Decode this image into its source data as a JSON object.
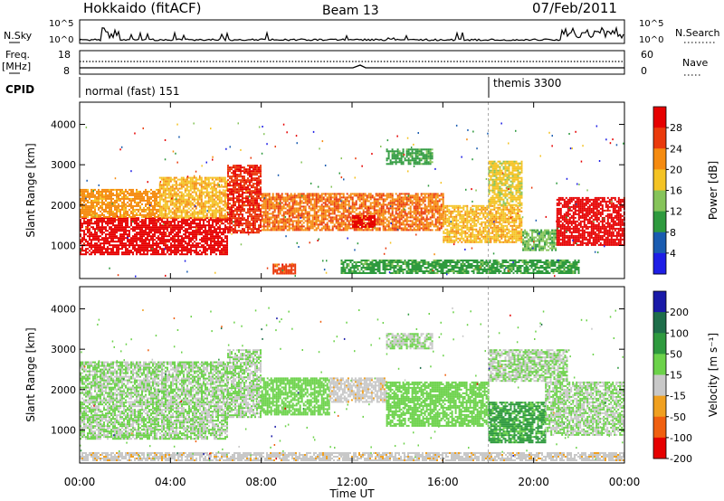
{
  "header": {
    "station": "Hokkaido (fitACF)",
    "beam": "Beam 13",
    "date": "07/Feb/2011"
  },
  "strips": {
    "nsky_label": "N.Sky",
    "nsearch_label": "N.Search",
    "freq_label_line1": "Freq.",
    "freq_label_line2": "[MHz]",
    "nave_label": "Nave",
    "cpid_label": "CPID",
    "nsky_ticks": [
      "10^5",
      "10^0"
    ],
    "nsearch_ticks": [
      "10^5",
      "10^0"
    ],
    "freq_ticks": [
      "18",
      "8"
    ],
    "nave_ticks": [
      "60",
      "0"
    ],
    "cpid_modes": [
      {
        "name": "normal (fast) 151",
        "start_hour": 0.0,
        "end_hour": 18.0
      },
      {
        "name": "themis 3300",
        "start_hour": 18.0,
        "end_hour": 24.0
      }
    ]
  },
  "chart_data": [
    {
      "type": "heatmap",
      "title": "",
      "xlabel": "Time UT",
      "ylabel": "Slant Range [km]",
      "x_ticks": [
        "00:00",
        "04:00",
        "08:00",
        "12:00",
        "16:00",
        "20:00",
        "00:00"
      ],
      "x_range_hours": [
        0,
        24
      ],
      "y_ticks": [
        "1000",
        "2000",
        "3000",
        "4000"
      ],
      "ylim": [
        180,
        4550
      ],
      "colorbar": {
        "label": "Power [dB]",
        "ticks": [
          "4",
          "8",
          "12",
          "16",
          "20",
          "24",
          "28"
        ],
        "range": [
          0,
          30
        ],
        "colors": [
          "#1e1ee6",
          "#1a5cb0",
          "#2e9a3e",
          "#86c45a",
          "#f4c324",
          "#f58b10",
          "#ea3a0c",
          "#e60000"
        ]
      },
      "echo_regions": [
        {
          "t0": 0.0,
          "t1": 6.5,
          "r0": 800,
          "r1": 1700,
          "value": 28
        },
        {
          "t0": 0.0,
          "t1": 3.5,
          "r0": 1700,
          "r1": 2400,
          "value": 20
        },
        {
          "t0": 3.5,
          "t1": 6.5,
          "r0": 1700,
          "r1": 2700,
          "value": 18
        },
        {
          "t0": 6.5,
          "t1": 8.0,
          "r0": 1300,
          "r1": 3000,
          "value": 26
        },
        {
          "t0": 8.0,
          "t1": 16.0,
          "r0": 1400,
          "r1": 2300,
          "value": 22
        },
        {
          "t0": 12.0,
          "t1": 13.0,
          "r0": 1450,
          "r1": 1750,
          "value": 30
        },
        {
          "t0": 16.0,
          "t1": 19.5,
          "r0": 1100,
          "r1": 2000,
          "value": 18
        },
        {
          "t0": 19.5,
          "t1": 21.0,
          "r0": 900,
          "r1": 1400,
          "value": 12
        },
        {
          "t0": 21.0,
          "t1": 24.0,
          "r0": 1000,
          "r1": 2200,
          "value": 28
        },
        {
          "t0": 8.5,
          "t1": 9.5,
          "r0": 300,
          "r1": 550,
          "value": 24
        },
        {
          "t0": 11.5,
          "t1": 22.0,
          "r0": 300,
          "r1": 650,
          "value": 10
        },
        {
          "t0": 13.5,
          "t1": 15.5,
          "r0": 3000,
          "r1": 3400,
          "value": 10
        },
        {
          "t0": 18.0,
          "t1": 19.5,
          "r0": 2000,
          "r1": 3100,
          "value": 16
        }
      ]
    },
    {
      "type": "heatmap",
      "title": "",
      "xlabel": "Time UT",
      "ylabel": "Slant Range [km]",
      "x_ticks": [
        "00:00",
        "04:00",
        "08:00",
        "12:00",
        "16:00",
        "20:00",
        "00:00"
      ],
      "x_range_hours": [
        0,
        24
      ],
      "y_ticks": [
        "1000",
        "2000",
        "3000",
        "4000"
      ],
      "ylim": [
        180,
        4550
      ],
      "colorbar": {
        "label": "Velocity [m s⁻¹]",
        "ticks": [
          "200",
          "100",
          "50",
          "15",
          "-15",
          "-50",
          "-100",
          "-200"
        ],
        "range": [
          -250,
          250
        ],
        "colors": [
          "#1a1aa8",
          "#1e6e4a",
          "#2e9a3e",
          "#6cd24a",
          "#c8c8c8",
          "#f0a020",
          "#f06010",
          "#e60000"
        ]
      },
      "echo_regions": [
        {
          "t0": 0.0,
          "t1": 6.5,
          "r0": 800,
          "r1": 1700,
          "value": 0
        },
        {
          "t0": 0.0,
          "t1": 6.5,
          "r0": 1700,
          "r1": 2700,
          "value": 0
        },
        {
          "t0": 6.5,
          "t1": 8.0,
          "r0": 1300,
          "r1": 3000,
          "value": 0
        },
        {
          "t0": 8.0,
          "t1": 11.0,
          "r0": 1400,
          "r1": 2300,
          "value": 30
        },
        {
          "t0": 11.0,
          "t1": 13.5,
          "r0": 1700,
          "r1": 2300,
          "value": -40
        },
        {
          "t0": 13.5,
          "t1": 18.0,
          "r0": 1100,
          "r1": 2200,
          "value": 30
        },
        {
          "t0": 18.0,
          "t1": 20.5,
          "r0": 700,
          "r1": 1700,
          "value": 80
        },
        {
          "t0": 20.5,
          "t1": 24.0,
          "r0": 900,
          "r1": 2200,
          "value": 0
        },
        {
          "t0": 0.0,
          "t1": 24.0,
          "r0": 250,
          "r1": 450,
          "value": -40
        },
        {
          "t0": 13.5,
          "t1": 15.5,
          "r0": 3000,
          "r1": 3400,
          "value": 0
        },
        {
          "t0": 18.0,
          "t1": 21.5,
          "r0": 2200,
          "r1": 3000,
          "value": 0
        }
      ]
    }
  ]
}
